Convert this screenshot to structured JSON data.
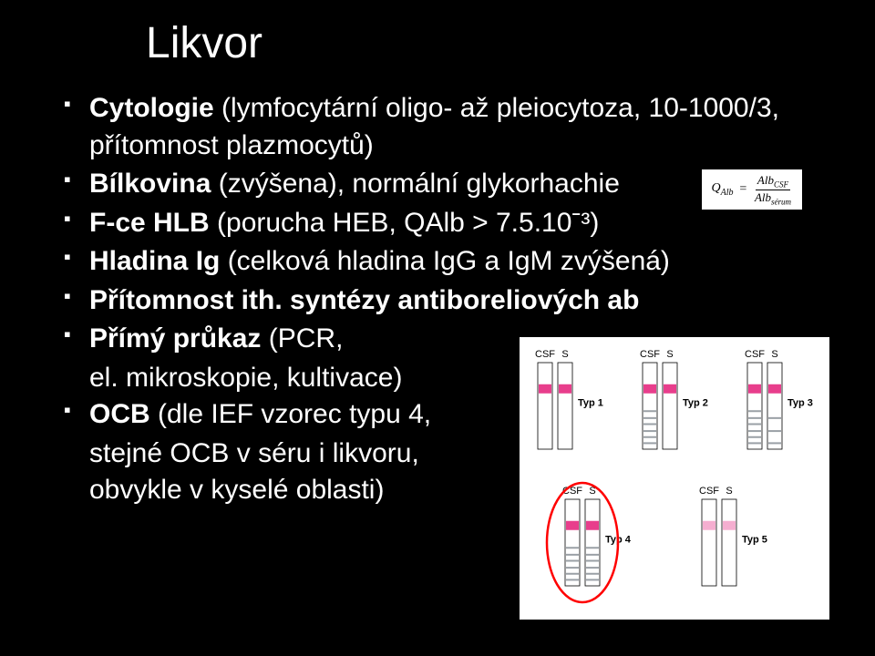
{
  "title": "Likvor",
  "bullets": {
    "b1_bold": "Cytologie",
    "b1_rest": " (lymfocytární oligo- až pleiocytoza, 10-1000/3, přítomnost plazmocytů)",
    "b2_bold": "Bílkovina",
    "b2_rest": " (zvýšena), normální glykorhachie",
    "b3_bold": "F-ce HLB",
    "b3_rest": " (porucha HEB, QAlb > 7.5.10ˉ³)",
    "b4_bold": "Hladina Ig",
    "b4_rest": " (celková hladina IgG a IgM zvýšená)",
    "b5_bold": "Přítomnost ith. syntézy antiboreliových ab",
    "b6_bold": "Přímý průkaz",
    "b6_rest": " (PCR,",
    "b6_sub": "el. mikroskopie, kultivace)",
    "b7_bold": "OCB",
    "b7_rest": " (dle IEF vzorec typu 4,",
    "b7_sub1": "stejné OCB v séru i likvoru,",
    "b7_sub2": "obvykle v kyselé oblasti)"
  },
  "formula": {
    "lhs": "Q",
    "lhs_sub": "Alb",
    "eq": " = ",
    "num": "Alb",
    "num_sub": "CSF",
    "den": "Alb",
    "den_sub": "sérum"
  },
  "diagram": {
    "lane_csf": "CSF",
    "lane_s": "S",
    "typ1": "Typ 1",
    "typ2": "Typ 2",
    "typ3": "Typ 3",
    "typ4": "Typ 4",
    "typ5": "Typ 5",
    "colors": {
      "bg": "#ffffff",
      "band_major": "#e83e8c",
      "band_major_light": "#f5aed0",
      "band_gray": "#9aa0a6",
      "lane_border": "#000000",
      "circle": "#ff0000"
    },
    "lane_width": 16,
    "lane_height": 95,
    "band_height_thick": 10,
    "band_height_thin": 2
  }
}
